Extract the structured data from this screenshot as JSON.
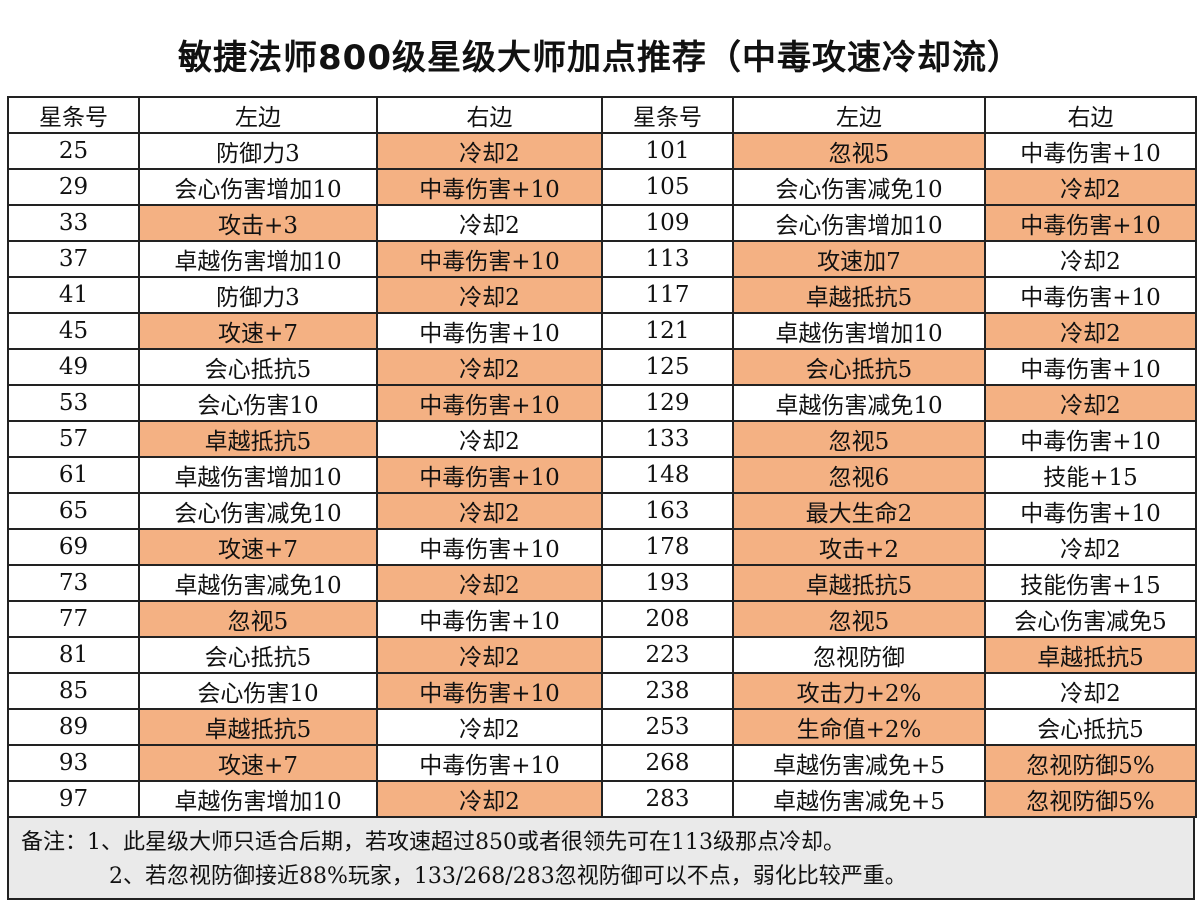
{
  "title": "敏捷法师800级星级大师加点推荐（中毒攻速冷却流）",
  "highlight_color": "#f4b183",
  "headers": [
    "星条号",
    "左边",
    "右边",
    "星条号",
    "左边",
    "右边"
  ],
  "rows": [
    {
      "n1": "25",
      "l1": "防御力3",
      "r1": "冷却2",
      "n2": "101",
      "l2": "忽视5",
      "r2": "中毒伤害+10",
      "hl": [
        false,
        true,
        true,
        false
      ]
    },
    {
      "n1": "29",
      "l1": "会心伤害增加10",
      "r1": "中毒伤害+10",
      "n2": "105",
      "l2": "会心伤害减免10",
      "r2": "冷却2",
      "hl": [
        false,
        true,
        false,
        true
      ]
    },
    {
      "n1": "33",
      "l1": "攻击+3",
      "r1": "冷却2",
      "n2": "109",
      "l2": "会心伤害增加10",
      "r2": "中毒伤害+10",
      "hl": [
        true,
        false,
        false,
        true
      ]
    },
    {
      "n1": "37",
      "l1": "卓越伤害增加10",
      "r1": "中毒伤害+10",
      "n2": "113",
      "l2": "攻速加7",
      "r2": "冷却2",
      "hl": [
        false,
        true,
        true,
        false
      ]
    },
    {
      "n1": "41",
      "l1": "防御力3",
      "r1": "冷却2",
      "n2": "117",
      "l2": "卓越抵抗5",
      "r2": "中毒伤害+10",
      "hl": [
        false,
        true,
        true,
        false
      ]
    },
    {
      "n1": "45",
      "l1": "攻速+7",
      "r1": "中毒伤害+10",
      "n2": "121",
      "l2": "卓越伤害增加10",
      "r2": "冷却2",
      "hl": [
        true,
        false,
        false,
        true
      ]
    },
    {
      "n1": "49",
      "l1": "会心抵抗5",
      "r1": "冷却2",
      "n2": "125",
      "l2": "会心抵抗5",
      "r2": "中毒伤害+10",
      "hl": [
        false,
        true,
        true,
        false
      ]
    },
    {
      "n1": "53",
      "l1": "会心伤害10",
      "r1": "中毒伤害+10",
      "n2": "129",
      "l2": "卓越伤害减免10",
      "r2": "冷却2",
      "hl": [
        false,
        true,
        false,
        true
      ]
    },
    {
      "n1": "57",
      "l1": "卓越抵抗5",
      "r1": "冷却2",
      "n2": "133",
      "l2": "忽视5",
      "r2": "中毒伤害+10",
      "hl": [
        true,
        false,
        true,
        false
      ]
    },
    {
      "n1": "61",
      "l1": "卓越伤害增加10",
      "r1": "中毒伤害+10",
      "n2": "148",
      "l2": "忽视6",
      "r2": "技能+15",
      "hl": [
        false,
        true,
        true,
        false
      ]
    },
    {
      "n1": "65",
      "l1": "会心伤害减免10",
      "r1": "冷却2",
      "n2": "163",
      "l2": "最大生命2",
      "r2": "中毒伤害+10",
      "hl": [
        false,
        true,
        true,
        false
      ]
    },
    {
      "n1": "69",
      "l1": "攻速+7",
      "r1": "中毒伤害+10",
      "n2": "178",
      "l2": "攻击+2",
      "r2": "冷却2",
      "hl": [
        true,
        false,
        true,
        false
      ]
    },
    {
      "n1": "73",
      "l1": "卓越伤害减免10",
      "r1": "冷却2",
      "n2": "193",
      "l2": "卓越抵抗5",
      "r2": "技能伤害+15",
      "hl": [
        false,
        true,
        true,
        false
      ]
    },
    {
      "n1": "77",
      "l1": "忽视5",
      "r1": "中毒伤害+10",
      "n2": "208",
      "l2": "忽视5",
      "r2": "会心伤害减免5",
      "hl": [
        true,
        false,
        true,
        false
      ]
    },
    {
      "n1": "81",
      "l1": "会心抵抗5",
      "r1": "冷却2",
      "n2": "223",
      "l2": "忽视防御",
      "r2": "卓越抵抗5",
      "hl": [
        false,
        true,
        false,
        true
      ]
    },
    {
      "n1": "85",
      "l1": "会心伤害10",
      "r1": "中毒伤害+10",
      "n2": "238",
      "l2": "攻击力+2%",
      "r2": "冷却2",
      "hl": [
        false,
        true,
        true,
        false
      ]
    },
    {
      "n1": "89",
      "l1": "卓越抵抗5",
      "r1": "冷却2",
      "n2": "253",
      "l2": "生命值+2%",
      "r2": "会心抵抗5",
      "hl": [
        true,
        false,
        true,
        false
      ]
    },
    {
      "n1": "93",
      "l1": "攻速+7",
      "r1": "中毒伤害+10",
      "n2": "268",
      "l2": "卓越伤害减免+5",
      "r2": "忽视防御5%",
      "hl": [
        true,
        false,
        false,
        true
      ]
    },
    {
      "n1": "97",
      "l1": "卓越伤害增加10",
      "r1": "冷却2",
      "n2": "283",
      "l2": "卓越伤害减免+5",
      "r2": "忽视防御5%",
      "hl": [
        false,
        true,
        false,
        true
      ]
    }
  ],
  "notes": {
    "line1": "备注：1、此星级大师只适合后期，若攻速超过850或者很领先可在113级那点冷却。",
    "line2": "2、若忽视防御接近88%玩家，133/268/283忽视防御可以不点，弱化比较严重。"
  }
}
